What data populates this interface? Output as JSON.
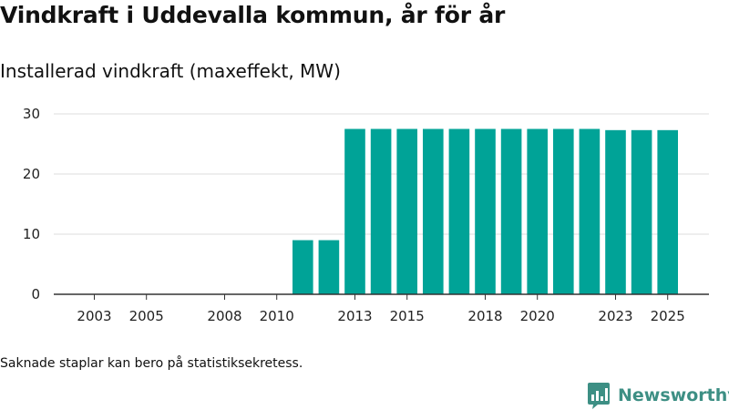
{
  "title": "Vindkraft i Uddevalla kommun, år för år",
  "subtitle": "Installerad vindkraft (maxeffekt, MW)",
  "note": "Saknade staplar kan bero på statistiksekretess.",
  "brand": {
    "name": "Newsworthy",
    "icon": "bar-chart-logo-icon",
    "color": "#3d8f84"
  },
  "chart_data": {
    "type": "bar",
    "title": "Installerad vindkraft (maxeffekt, MW)",
    "xlabel": "",
    "ylabel": "",
    "bar_color": "#00a397",
    "categories": [
      "2003",
      "2004",
      "2005",
      "2006",
      "2007",
      "2008",
      "2009",
      "2010",
      "2011",
      "2012",
      "2013",
      "2014",
      "2015",
      "2016",
      "2017",
      "2018",
      "2019",
      "2020",
      "2021",
      "2022",
      "2023",
      "2024",
      "2025"
    ],
    "values": [
      0,
      0,
      0,
      0,
      0,
      0,
      0,
      0,
      9,
      9,
      27.5,
      27.5,
      27.5,
      27.5,
      27.5,
      27.5,
      27.5,
      27.5,
      27.5,
      27.5,
      27.3,
      27.3,
      27.3
    ],
    "xticks": [
      "2003",
      "2005",
      "2008",
      "2010",
      "2013",
      "2015",
      "2018",
      "2020",
      "2023",
      "2025"
    ],
    "yticks": [
      0,
      10,
      20,
      30
    ],
    "ylim": [
      0,
      30
    ],
    "grid": true
  }
}
